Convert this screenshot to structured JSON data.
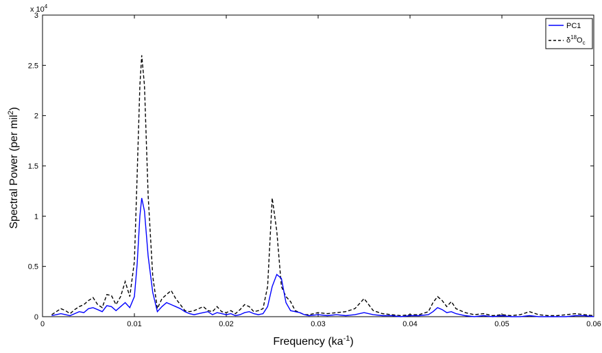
{
  "chart_data": {
    "type": "line",
    "xlabel": "Frequency (ka",
    "xlabel_sup": "-1",
    "xlabel_end": ")",
    "ylabel": "Spectral Power (per mil",
    "ylabel_sup": "2",
    "ylabel_end": ")",
    "y_multiplier": "x 10",
    "y_multiplier_exp": "4",
    "xlim": [
      0,
      0.06
    ],
    "ylim": [
      0,
      3
    ],
    "x_ticks": [
      0,
      0.01,
      0.02,
      0.03,
      0.04,
      0.05,
      0.06
    ],
    "x_tick_labels": [
      "0",
      "0.01",
      "0.02",
      "0.03",
      "0.04",
      "0.05",
      "0.06"
    ],
    "y_ticks": [
      0,
      0.5,
      1,
      1.5,
      2,
      2.5,
      3
    ],
    "y_tick_labels": [
      "0",
      "0.5",
      "1",
      "1.5",
      "2",
      "2.5",
      "3"
    ],
    "grid": false,
    "legend_position": "top-right",
    "series": [
      {
        "name": "PC1",
        "label_main": "PC1",
        "color": "#0000ff",
        "style": "solid",
        "x": [
          0.001,
          0.0015,
          0.002,
          0.0025,
          0.003,
          0.0035,
          0.004,
          0.0045,
          0.005,
          0.0055,
          0.006,
          0.0065,
          0.007,
          0.0075,
          0.008,
          0.0085,
          0.009,
          0.0095,
          0.01,
          0.0103,
          0.0106,
          0.0108,
          0.0111,
          0.0115,
          0.012,
          0.0125,
          0.013,
          0.0135,
          0.014,
          0.0145,
          0.015,
          0.0155,
          0.016,
          0.0165,
          0.017,
          0.0175,
          0.018,
          0.0185,
          0.019,
          0.0195,
          0.02,
          0.0205,
          0.021,
          0.0215,
          0.022,
          0.0225,
          0.023,
          0.0235,
          0.024,
          0.0245,
          0.025,
          0.0255,
          0.026,
          0.0265,
          0.027,
          0.0275,
          0.028,
          0.0285,
          0.029,
          0.03,
          0.031,
          0.032,
          0.033,
          0.034,
          0.035,
          0.036,
          0.037,
          0.038,
          0.039,
          0.04,
          0.041,
          0.042,
          0.0425,
          0.043,
          0.0435,
          0.044,
          0.0445,
          0.045,
          0.046,
          0.047,
          0.048,
          0.049,
          0.05,
          0.051,
          0.052,
          0.053,
          0.054,
          0.055,
          0.056,
          0.057,
          0.058,
          0.059,
          0.06
        ],
        "y": [
          0.01,
          0.02,
          0.03,
          0.02,
          0.01,
          0.03,
          0.05,
          0.04,
          0.08,
          0.09,
          0.07,
          0.05,
          0.11,
          0.1,
          0.06,
          0.1,
          0.14,
          0.09,
          0.2,
          0.52,
          1.0,
          1.18,
          1.05,
          0.6,
          0.24,
          0.05,
          0.1,
          0.14,
          0.12,
          0.1,
          0.08,
          0.05,
          0.03,
          0.02,
          0.03,
          0.04,
          0.05,
          0.02,
          0.04,
          0.03,
          0.02,
          0.03,
          0.01,
          0.02,
          0.04,
          0.05,
          0.03,
          0.02,
          0.03,
          0.1,
          0.3,
          0.42,
          0.38,
          0.14,
          0.06,
          0.05,
          0.04,
          0.02,
          0.01,
          0.02,
          0.01,
          0.02,
          0.01,
          0.02,
          0.04,
          0.02,
          0.01,
          0.01,
          0.0,
          0.01,
          0.01,
          0.02,
          0.05,
          0.09,
          0.07,
          0.04,
          0.05,
          0.03,
          0.01,
          0.0,
          0.01,
          0.0,
          0.01,
          0.0,
          0.0,
          0.01,
          0.0,
          0.0,
          0.0,
          0.0,
          0.01,
          0.01,
          0.0
        ]
      },
      {
        "name": "δ18Oc",
        "label_main": "δ",
        "label_sup": "18",
        "label_main2": "O",
        "label_sub": "c",
        "color": "#000000",
        "style": "dashed",
        "x": [
          0.001,
          0.0015,
          0.002,
          0.0025,
          0.003,
          0.0035,
          0.004,
          0.0045,
          0.005,
          0.0055,
          0.006,
          0.0065,
          0.007,
          0.0075,
          0.008,
          0.0085,
          0.009,
          0.0095,
          0.01,
          0.0103,
          0.0106,
          0.0108,
          0.0111,
          0.0115,
          0.012,
          0.0125,
          0.013,
          0.0135,
          0.014,
          0.0145,
          0.015,
          0.0155,
          0.016,
          0.0165,
          0.017,
          0.0175,
          0.018,
          0.0185,
          0.019,
          0.0195,
          0.02,
          0.0205,
          0.021,
          0.0215,
          0.022,
          0.0225,
          0.023,
          0.0235,
          0.024,
          0.0245,
          0.025,
          0.0255,
          0.026,
          0.0265,
          0.027,
          0.0275,
          0.028,
          0.0285,
          0.029,
          0.03,
          0.031,
          0.032,
          0.033,
          0.034,
          0.035,
          0.036,
          0.037,
          0.038,
          0.039,
          0.04,
          0.041,
          0.042,
          0.0425,
          0.043,
          0.0435,
          0.044,
          0.0445,
          0.045,
          0.046,
          0.047,
          0.048,
          0.049,
          0.05,
          0.051,
          0.052,
          0.053,
          0.054,
          0.055,
          0.056,
          0.057,
          0.058,
          0.059,
          0.06
        ],
        "y": [
          0.02,
          0.05,
          0.08,
          0.06,
          0.03,
          0.07,
          0.1,
          0.12,
          0.16,
          0.19,
          0.12,
          0.09,
          0.22,
          0.21,
          0.12,
          0.2,
          0.35,
          0.2,
          0.55,
          1.4,
          2.3,
          2.6,
          2.3,
          1.2,
          0.4,
          0.08,
          0.18,
          0.22,
          0.26,
          0.18,
          0.12,
          0.06,
          0.05,
          0.06,
          0.08,
          0.1,
          0.06,
          0.05,
          0.1,
          0.05,
          0.04,
          0.06,
          0.03,
          0.07,
          0.12,
          0.1,
          0.05,
          0.06,
          0.08,
          0.3,
          1.18,
          0.85,
          0.3,
          0.2,
          0.15,
          0.06,
          0.04,
          0.02,
          0.02,
          0.04,
          0.03,
          0.04,
          0.05,
          0.08,
          0.18,
          0.06,
          0.03,
          0.02,
          0.01,
          0.02,
          0.02,
          0.05,
          0.14,
          0.2,
          0.16,
          0.1,
          0.15,
          0.08,
          0.04,
          0.02,
          0.03,
          0.01,
          0.02,
          0.01,
          0.02,
          0.05,
          0.02,
          0.01,
          0.01,
          0.02,
          0.03,
          0.02,
          0.01
        ]
      }
    ]
  }
}
